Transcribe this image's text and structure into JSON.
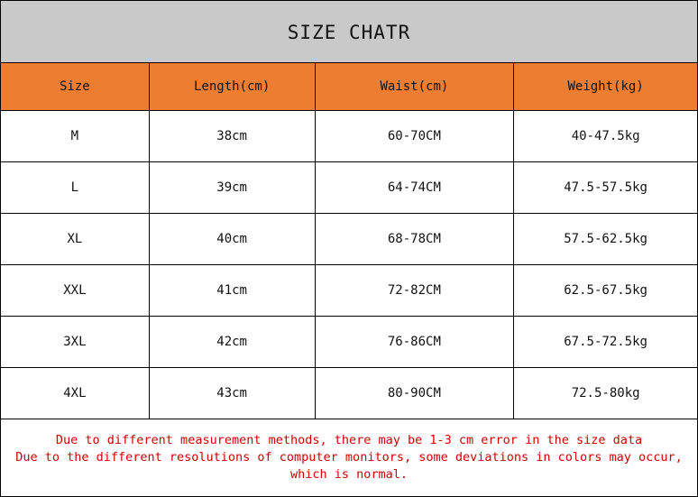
{
  "title": "SIZE CHATR",
  "colors": {
    "header_bg": "#ed7d31",
    "title_bg": "#c9c9c9",
    "note_text": "#d00000"
  },
  "headers": [
    "Size",
    "Length(cm)",
    "Waist(cm)",
    "Weight(kg)"
  ],
  "rows": [
    [
      "M",
      "38cm",
      "60-70CM",
      "40-47.5kg"
    ],
    [
      "L",
      "39cm",
      "64-74CM",
      "47.5-57.5kg"
    ],
    [
      "XL",
      "40cm",
      "68-78CM",
      "57.5-62.5kg"
    ],
    [
      "XXL",
      "41cm",
      "72-82CM",
      "62.5-67.5kg"
    ],
    [
      "3XL",
      "42cm",
      "76-86CM",
      "67.5-72.5kg"
    ],
    [
      "4XL",
      "43cm",
      "80-90CM",
      "72.5-80kg"
    ]
  ],
  "notes": [
    "Due to different measurement methods, there may be 1-3 cm error in the size data",
    "Due to the different resolutions of computer monitors, some deviations in colors may occur,",
    "which is normal."
  ]
}
